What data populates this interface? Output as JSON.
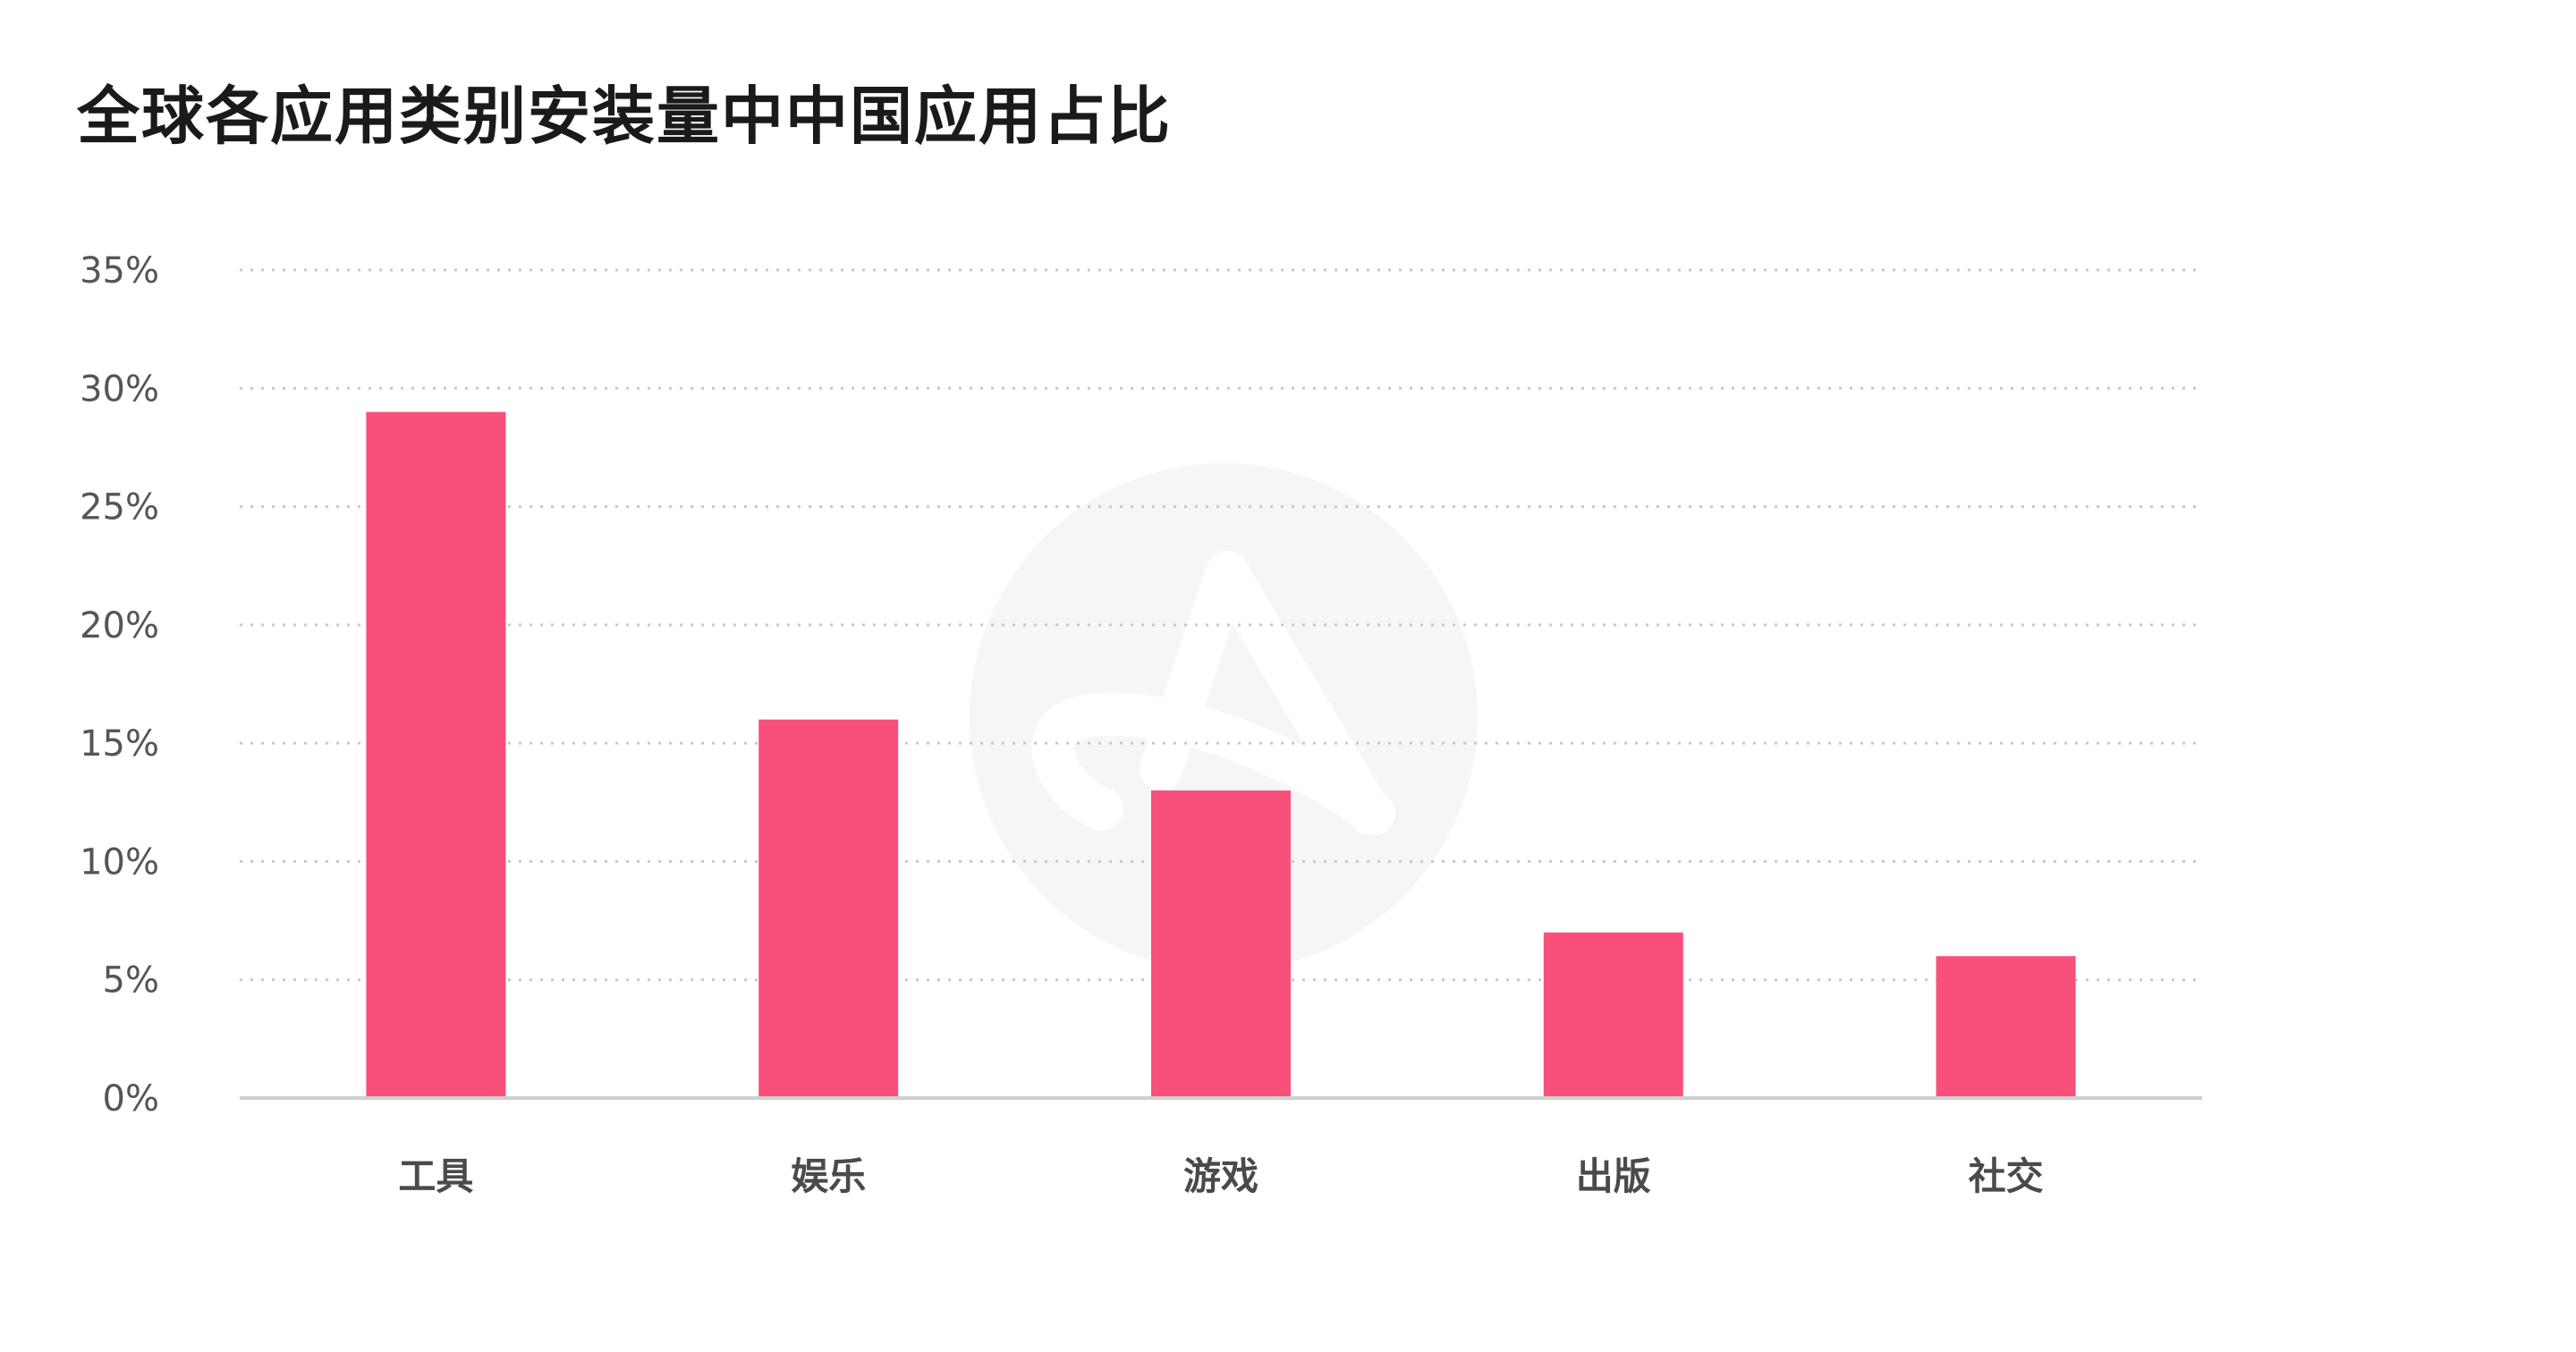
{
  "chart_data": {
    "type": "bar",
    "title": "全球各应用类别安装量中中国应用占比",
    "categories": [
      "工具",
      "娱乐",
      "游戏",
      "出版",
      "社交"
    ],
    "values": [
      29,
      16,
      13,
      7,
      6
    ],
    "value_unit": "%",
    "yticks": [
      "0%",
      "5%",
      "10%",
      "15%",
      "20%",
      "25%",
      "30%",
      "35%"
    ],
    "ylim": [
      0,
      35
    ],
    "ytick_step": 5,
    "xlabel": "",
    "ylabel": "",
    "grid": true,
    "legend": "none",
    "bar_color": "#f94f7b",
    "watermark": "logo"
  }
}
